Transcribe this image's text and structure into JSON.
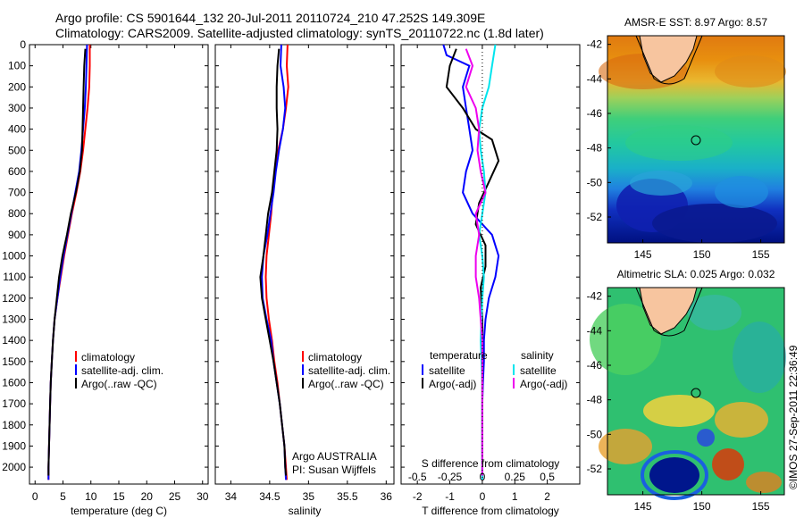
{
  "header": {
    "line1": "Argo profile: CS 5901644_132 20-Jul-2011 20110724_210 47.252S 149.309E",
    "line2": "Climatology: CARS2009. Satellite-adjusted climatology: synTS_20110722.nc (1.8d later)"
  },
  "watermark": "©IMOS 27-Sep-2011 22:36:49",
  "colors": {
    "climatology": "#ff0000",
    "satellite": "#0000ff",
    "argo": "#000000",
    "salinity_sat": "#00e5ee",
    "salinity_argo": "#ee00ee"
  },
  "chart_data": [
    {
      "type": "line",
      "id": "temperature",
      "xlabel": "temperature (deg C)",
      "xlim": [
        -1,
        31
      ],
      "xticks": [
        0,
        5,
        10,
        15,
        20,
        25,
        30
      ],
      "ylim": [
        2080,
        0
      ],
      "yticks": [
        0,
        100,
        200,
        300,
        400,
        500,
        600,
        700,
        800,
        900,
        1000,
        1100,
        1200,
        1300,
        1400,
        1500,
        1600,
        1700,
        1800,
        1900,
        2000
      ],
      "legend": [
        "climatology",
        "satellite-adj. clim.",
        "Argo(..raw -QC)"
      ],
      "series": [
        {
          "name": "climatology",
          "color": "#ff0000",
          "points": [
            [
              9.8,
              0
            ],
            [
              9.8,
              100
            ],
            [
              9.7,
              200
            ],
            [
              9.4,
              300
            ],
            [
              9.0,
              400
            ],
            [
              8.6,
              500
            ],
            [
              8.1,
              600
            ],
            [
              7.4,
              700
            ],
            [
              6.6,
              800
            ],
            [
              5.9,
              900
            ],
            [
              5.2,
              1000
            ],
            [
              4.6,
              1100
            ],
            [
              4.0,
              1200
            ],
            [
              3.5,
              1300
            ],
            [
              3.2,
              1400
            ],
            [
              3.0,
              1500
            ],
            [
              2.8,
              1600
            ],
            [
              2.7,
              1700
            ],
            [
              2.6,
              1800
            ],
            [
              2.5,
              1900
            ],
            [
              2.4,
              2000
            ],
            [
              2.4,
              2060
            ]
          ]
        },
        {
          "name": "satellite-adj. clim.",
          "color": "#0000ff",
          "points": [
            [
              9.3,
              0
            ],
            [
              9.2,
              100
            ],
            [
              9.1,
              200
            ],
            [
              8.9,
              300
            ],
            [
              8.6,
              400
            ],
            [
              8.3,
              500
            ],
            [
              7.9,
              600
            ],
            [
              7.2,
              700
            ],
            [
              6.5,
              800
            ],
            [
              5.8,
              900
            ],
            [
              5.1,
              1000
            ],
            [
              4.5,
              1100
            ],
            [
              4.0,
              1200
            ],
            [
              3.5,
              1300
            ],
            [
              3.2,
              1400
            ],
            [
              3.0,
              1500
            ],
            [
              2.8,
              1600
            ],
            [
              2.7,
              1700
            ],
            [
              2.6,
              1800
            ],
            [
              2.5,
              1900
            ],
            [
              2.4,
              2000
            ],
            [
              2.4,
              2060
            ]
          ]
        },
        {
          "name": "Argo(..raw -QC)",
          "color": "#000000",
          "points": [
            [
              9.0,
              20
            ],
            [
              8.8,
              100
            ],
            [
              8.7,
              200
            ],
            [
              8.6,
              300
            ],
            [
              8.5,
              400
            ],
            [
              8.4,
              500
            ],
            [
              8.0,
              600
            ],
            [
              7.3,
              700
            ],
            [
              6.4,
              800
            ],
            [
              5.7,
              900
            ],
            [
              4.9,
              1000
            ],
            [
              4.3,
              1100
            ],
            [
              3.9,
              1200
            ],
            [
              3.5,
              1300
            ],
            [
              3.2,
              1400
            ],
            [
              3.0,
              1500
            ],
            [
              2.8,
              1600
            ],
            [
              2.7,
              1700
            ],
            [
              2.6,
              1800
            ],
            [
              2.5,
              1900
            ],
            [
              2.4,
              2000
            ],
            [
              2.4,
              2040
            ]
          ]
        }
      ]
    },
    {
      "type": "line",
      "id": "salinity",
      "xlabel": "salinity",
      "xlim": [
        33.8,
        36.1
      ],
      "xticks": [
        34,
        34.5,
        35,
        35.5,
        36
      ],
      "ylim": [
        2080,
        0
      ],
      "legend": [
        "climatology",
        "satellite-adj. clim.",
        "Argo(..raw -QC)"
      ],
      "annotation": [
        "Argo AUSTRALIA",
        "PI: Susan Wijffels"
      ],
      "series": [
        {
          "name": "climatology",
          "color": "#ff0000",
          "points": [
            [
              34.73,
              0
            ],
            [
              34.72,
              100
            ],
            [
              34.74,
              200
            ],
            [
              34.71,
              300
            ],
            [
              34.67,
              400
            ],
            [
              34.61,
              500
            ],
            [
              34.57,
              600
            ],
            [
              34.54,
              700
            ],
            [
              34.52,
              800
            ],
            [
              34.49,
              900
            ],
            [
              34.46,
              1000
            ],
            [
              34.45,
              1100
            ],
            [
              34.46,
              1200
            ],
            [
              34.49,
              1300
            ],
            [
              34.53,
              1400
            ],
            [
              34.56,
              1500
            ],
            [
              34.6,
              1600
            ],
            [
              34.63,
              1700
            ],
            [
              34.66,
              1800
            ],
            [
              34.69,
              1900
            ],
            [
              34.71,
              2000
            ],
            [
              34.72,
              2060
            ]
          ]
        },
        {
          "name": "satellite-adj. clim.",
          "color": "#0000ff",
          "points": [
            [
              34.65,
              0
            ],
            [
              34.64,
              100
            ],
            [
              34.68,
              200
            ],
            [
              34.7,
              300
            ],
            [
              34.67,
              400
            ],
            [
              34.62,
              500
            ],
            [
              34.58,
              600
            ],
            [
              34.55,
              700
            ],
            [
              34.51,
              800
            ],
            [
              34.47,
              900
            ],
            [
              34.42,
              1000
            ],
            [
              34.4,
              1100
            ],
            [
              34.41,
              1200
            ],
            [
              34.46,
              1300
            ],
            [
              34.52,
              1400
            ],
            [
              34.55,
              1500
            ],
            [
              34.59,
              1600
            ],
            [
              34.63,
              1700
            ],
            [
              34.66,
              1800
            ],
            [
              34.69,
              1900
            ],
            [
              34.7,
              2000
            ],
            [
              34.71,
              2060
            ]
          ]
        },
        {
          "name": "Argo(..raw -QC)",
          "color": "#000000",
          "points": [
            [
              34.62,
              20
            ],
            [
              34.6,
              100
            ],
            [
              34.59,
              200
            ],
            [
              34.59,
              300
            ],
            [
              34.6,
              400
            ],
            [
              34.59,
              500
            ],
            [
              34.56,
              600
            ],
            [
              34.53,
              700
            ],
            [
              34.48,
              800
            ],
            [
              34.45,
              900
            ],
            [
              34.42,
              1000
            ],
            [
              34.38,
              1100
            ],
            [
              34.4,
              1200
            ],
            [
              34.45,
              1300
            ],
            [
              34.5,
              1400
            ],
            [
              34.55,
              1500
            ],
            [
              34.59,
              1600
            ],
            [
              34.63,
              1700
            ],
            [
              34.66,
              1800
            ],
            [
              34.69,
              1900
            ],
            [
              34.7,
              2000
            ],
            [
              34.71,
              2040
            ]
          ]
        }
      ]
    },
    {
      "type": "line",
      "id": "difference",
      "xlabel": "T difference from climatology",
      "xlabel_top": "S difference from climatology",
      "xlim": [
        -2.5,
        3
      ],
      "xticks": [
        -2,
        -1,
        0,
        1,
        2
      ],
      "sticks_labels": [
        "-0.5",
        "-0.25",
        "0",
        "0.25",
        "0.5"
      ],
      "sticks_positions": [
        -2,
        -1,
        0,
        1,
        2
      ],
      "ylim": [
        2080,
        0
      ],
      "legend_titles": [
        "temperature",
        "salinity"
      ],
      "legend": [
        "satellite",
        "Argo(-adj)",
        "satellite",
        "Argo(-adj)"
      ],
      "series": [
        {
          "name": "temperature satellite",
          "color": "#0000ff",
          "points": [
            [
              -1.2,
              0
            ],
            [
              -1.1,
              50
            ],
            [
              -0.4,
              100
            ],
            [
              -0.6,
              200
            ],
            [
              -0.5,
              300
            ],
            [
              -0.4,
              400
            ],
            [
              -0.3,
              500
            ],
            [
              -0.5,
              600
            ],
            [
              -0.6,
              700
            ],
            [
              -0.3,
              800
            ],
            [
              0.3,
              900
            ],
            [
              0.5,
              1000
            ],
            [
              0.4,
              1100
            ],
            [
              0.2,
              1200
            ],
            [
              0.1,
              1300
            ],
            [
              0.05,
              1400
            ],
            [
              0.05,
              1500
            ],
            [
              0.02,
              1600
            ],
            [
              0.0,
              1700
            ],
            [
              0.0,
              1800
            ],
            [
              0.0,
              2000
            ],
            [
              0.0,
              2060
            ]
          ]
        },
        {
          "name": "temperature Argo(-adj)",
          "color": "#000000",
          "points": [
            [
              -0.8,
              20
            ],
            [
              -1.0,
              100
            ],
            [
              -1.1,
              200
            ],
            [
              -0.6,
              300
            ],
            [
              -0.2,
              400
            ],
            [
              0.3,
              450
            ],
            [
              0.5,
              550
            ],
            [
              0.2,
              650
            ],
            [
              -0.1,
              750
            ],
            [
              -0.2,
              850
            ],
            [
              0.1,
              950
            ],
            [
              0.1,
              1050
            ],
            [
              -0.05,
              1150
            ],
            [
              0.0,
              1300
            ],
            [
              0.0,
              1500
            ],
            [
              0.0,
              1800
            ],
            [
              0.0,
              2040
            ]
          ]
        },
        {
          "name": "salinity satellite",
          "color": "#00e5ee",
          "points": [
            [
              0.4,
              0
            ],
            [
              0.3,
              100
            ],
            [
              0.2,
              200
            ],
            [
              0.0,
              300
            ],
            [
              -0.1,
              400
            ],
            [
              -0.05,
              500
            ],
            [
              0.05,
              600
            ],
            [
              0.1,
              700
            ],
            [
              0.0,
              800
            ],
            [
              -0.1,
              900
            ],
            [
              0.0,
              1000
            ],
            [
              0.05,
              1100
            ],
            [
              0.0,
              1200
            ],
            [
              -0.05,
              1400
            ],
            [
              0.0,
              1600
            ],
            [
              0.0,
              1800
            ],
            [
              0.0,
              2060
            ]
          ]
        },
        {
          "name": "salinity Argo(-adj)",
          "color": "#ee00ee",
          "points": [
            [
              -0.5,
              20
            ],
            [
              -0.3,
              100
            ],
            [
              -0.5,
              200
            ],
            [
              -0.2,
              300
            ],
            [
              -0.1,
              400
            ],
            [
              -0.15,
              500
            ],
            [
              -0.05,
              600
            ],
            [
              0.1,
              700
            ],
            [
              -0.2,
              800
            ],
            [
              -0.1,
              900
            ],
            [
              -0.2,
              1000
            ],
            [
              -0.2,
              1100
            ],
            [
              -0.1,
              1200
            ],
            [
              0.0,
              1400
            ],
            [
              0.0,
              1600
            ],
            [
              0.0,
              1800
            ],
            [
              0.0,
              2040
            ]
          ]
        }
      ]
    },
    {
      "type": "heatmap",
      "id": "sst_map",
      "title": "AMSR-E SST: 8.97 Argo: 8.57",
      "xlim": [
        142,
        157
      ],
      "ylim": [
        -53.5,
        -41.5
      ],
      "xticks": [
        145,
        150,
        155
      ],
      "yticks": [
        -42,
        -44,
        -46,
        -48,
        -50,
        -52
      ],
      "float_position": [
        149.309,
        -47.252
      ]
    },
    {
      "type": "heatmap",
      "id": "sla_map",
      "title": "Altimetric SLA: 0.025 Argo: 0.032",
      "xlim": [
        142,
        157
      ],
      "ylim": [
        -53.5,
        -41.5
      ],
      "xticks": [
        145,
        150,
        155
      ],
      "yticks": [
        -42,
        -44,
        -46,
        -48,
        -50,
        -52
      ],
      "float_position": [
        149.309,
        -47.252
      ]
    }
  ]
}
